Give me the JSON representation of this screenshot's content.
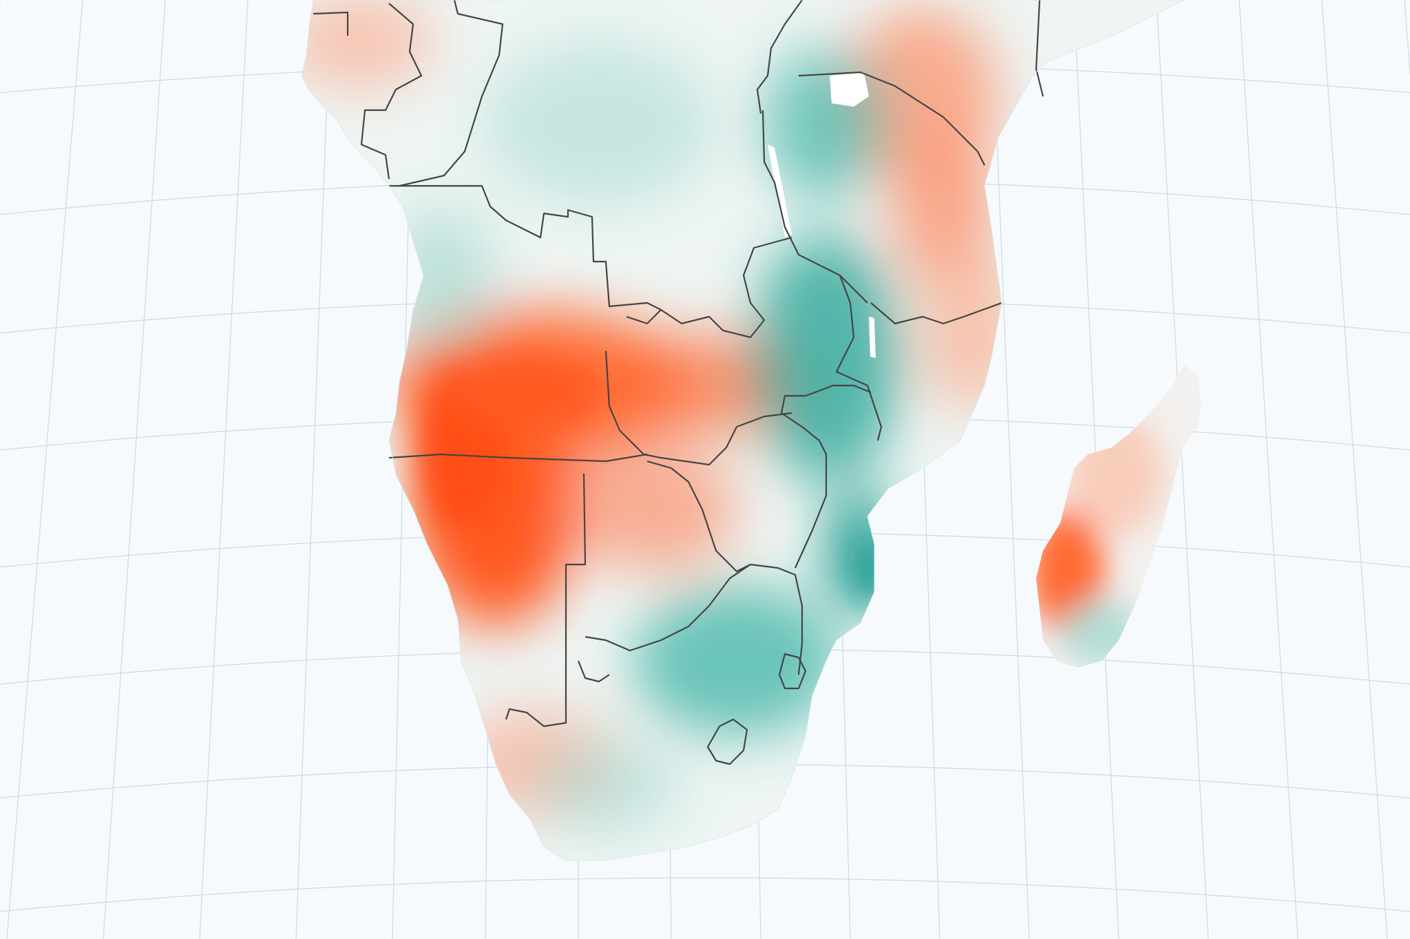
{
  "map": {
    "region": "Southern Africa",
    "colors": {
      "background": "#f7fafc",
      "graticule": "#c9dde8",
      "land_neutral": "#eef5f3",
      "anomaly_positive": "#ff4d14",
      "anomaly_positive_light": "#f9b9a2",
      "anomaly_negative": "#17998c",
      "anomaly_negative_light": "#a9dbd3",
      "borders": "#444444"
    },
    "legend": null,
    "labels": []
  }
}
